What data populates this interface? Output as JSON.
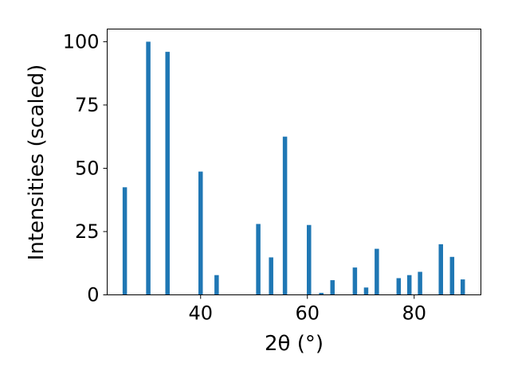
{
  "chart_data": {
    "type": "bar",
    "title": "",
    "xlabel": "2θ (°)",
    "ylabel": "Intensities (scaled)",
    "xlim": [
      22.5,
      92.5
    ],
    "ylim": [
      0,
      105
    ],
    "xticks": [
      40,
      60,
      80
    ],
    "yticks": [
      0,
      25,
      50,
      75,
      100
    ],
    "grid": false,
    "legend": "none",
    "bar_color": "#1f77b4",
    "x": [
      25.8,
      30.2,
      33.8,
      40.0,
      43.0,
      50.8,
      53.2,
      55.8,
      60.3,
      62.6,
      64.7,
      68.9,
      71.0,
      73.0,
      77.1,
      79.1,
      81.1,
      85.0,
      87.1,
      89.1
    ],
    "values": [
      42.5,
      100,
      96,
      48.7,
      7.8,
      28,
      14.8,
      62.5,
      27.6,
      0.8,
      5.8,
      10.8,
      2.9,
      18.2,
      6.6,
      7.8,
      9.1,
      20,
      15,
      6.1
    ]
  }
}
